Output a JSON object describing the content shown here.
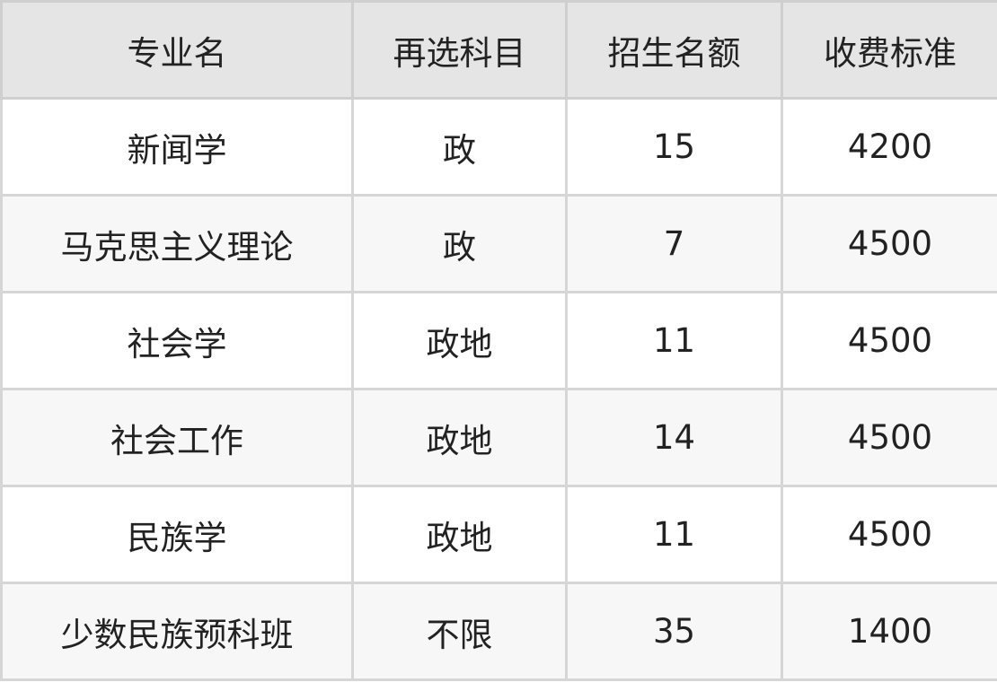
{
  "table": {
    "headers": [
      "专业名",
      "再选科目",
      "招生名额",
      "收费标准"
    ],
    "rows": [
      [
        "新闻学",
        "政",
        "15",
        "4200"
      ],
      [
        "马克思主义理论",
        "政",
        "7",
        "4500"
      ],
      [
        "社会学",
        "政地",
        "11",
        "4500"
      ],
      [
        "社会工作",
        "政地",
        "14",
        "4500"
      ],
      [
        "民族学",
        "政地",
        "11",
        "4500"
      ],
      [
        "少数民族预科班",
        "不限",
        "35",
        "1400"
      ]
    ]
  },
  "colors": {
    "header_bg": "#e5e5e5",
    "alt_row_bg": "#f7f7f7",
    "border": "#d6d6d6"
  }
}
